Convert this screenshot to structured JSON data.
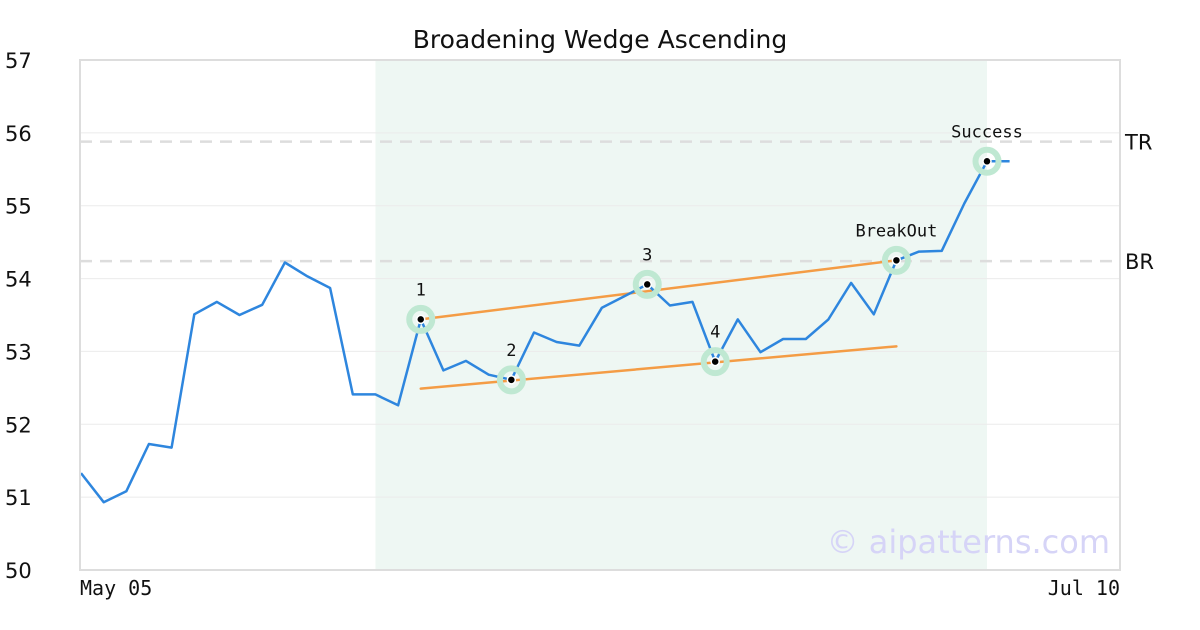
{
  "chart_data": {
    "type": "line",
    "title": "Broadening Wedge Ascending",
    "watermark": "© aipatterns.com",
    "ylim": [
      50,
      57
    ],
    "y_ticks": [
      "50",
      "51",
      "52",
      "53",
      "54",
      "55",
      "56",
      "57"
    ],
    "x_tick_labels": [
      {
        "index": 0,
        "label": "May 05"
      },
      {
        "index": 46,
        "label": "Jul 10"
      }
    ],
    "grid": "horizontal",
    "legend": "none",
    "series": [
      {
        "color": "#2e86de",
        "values": [
          51.33,
          50.93,
          51.08,
          51.73,
          51.68,
          53.51,
          53.68,
          53.5,
          53.64,
          54.22,
          54.03,
          53.87,
          52.41,
          52.41,
          52.26,
          53.44,
          52.74,
          52.87,
          52.68,
          52.61,
          53.26,
          53.13,
          53.08,
          53.6,
          53.76,
          53.92,
          53.63,
          53.68,
          52.86,
          53.44,
          52.99,
          53.17,
          53.17,
          53.44,
          53.94,
          53.51,
          54.25,
          54.37,
          54.38,
          55.03,
          55.61,
          55.61
        ]
      }
    ],
    "highlight_range": {
      "start_index": 13,
      "end_index": 40,
      "color": "#eef7f3"
    },
    "trend_lines": [
      {
        "name": "upper",
        "color": "#f49c45",
        "from": {
          "index": 15,
          "value": 53.44
        },
        "to": {
          "index": 36,
          "value": 54.25
        }
      },
      {
        "name": "lower",
        "color": "#f49c45",
        "from": {
          "index": 15,
          "value": 52.49
        },
        "to": {
          "index": 36,
          "value": 53.07
        }
      }
    ],
    "levels": [
      {
        "label": "TR",
        "value": 55.88,
        "color": "#dddddd"
      },
      {
        "label": "BR",
        "value": 54.24,
        "color": "#dddddd"
      }
    ],
    "marked_points": [
      {
        "label": "1",
        "index": 15,
        "value": 53.44
      },
      {
        "label": "2",
        "index": 19,
        "value": 52.61
      },
      {
        "label": "3",
        "index": 25,
        "value": 53.92
      },
      {
        "label": "4",
        "index": 28,
        "value": 52.86
      },
      {
        "label": "BreakOut",
        "index": 36,
        "value": 54.25
      },
      {
        "label": "Success",
        "index": 40,
        "value": 55.61
      }
    ]
  }
}
